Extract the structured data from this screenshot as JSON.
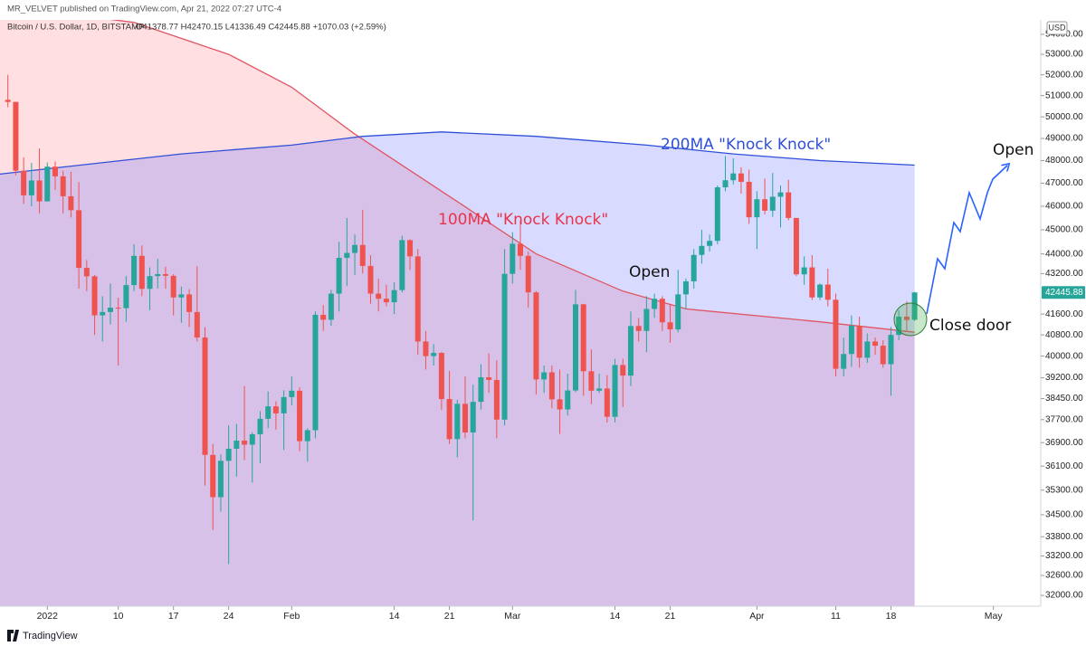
{
  "header": {
    "published": "MR_VELVET published on TradingView.com, Apr 21, 2022 07:27 UTC-4",
    "symbol": "Bitcoin / U.S. Dollar, 1D, BITSTAMP",
    "ohlc": "O41378.77  H42470.15  L41336.49  C42445.88  +1070.03 (+2.59%)",
    "currency": "USD"
  },
  "footer": {
    "brand": "TradingView"
  },
  "annotations": [
    {
      "text": "200MA  \"Knock Knock\"",
      "color": "#2f4fd8"
    },
    {
      "text": "100MA  \"Knock Knock\"",
      "color": "#e8344a"
    },
    {
      "text": "Open",
      "color": "#111111"
    },
    {
      "text": "Open",
      "color": "#111111"
    },
    {
      "text": "Close door",
      "color": "#111111"
    }
  ],
  "chart_data": {
    "type": "candlestick",
    "log": true,
    "grid": false,
    "up_color": "#26a69a",
    "down_color": "#ef5350",
    "xlim": [
      "2021-12-26",
      "2022-05-07"
    ],
    "ylim": [
      31680,
      54730
    ],
    "last_price": 42445.88,
    "xticks": [
      {
        "value": "2022-01-01",
        "label": "2022"
      },
      {
        "value": "2022-01-10",
        "label": "10"
      },
      {
        "value": "2022-01-17",
        "label": "17"
      },
      {
        "value": "2022-01-24",
        "label": "24"
      },
      {
        "value": "2022-02-01",
        "label": "Feb"
      },
      {
        "value": "2022-02-14",
        "label": "14"
      },
      {
        "value": "2022-02-21",
        "label": "21"
      },
      {
        "value": "2022-03-01",
        "label": "Mar"
      },
      {
        "value": "2022-03-14",
        "label": "14"
      },
      {
        "value": "2022-03-21",
        "label": "21"
      },
      {
        "value": "2022-04-01",
        "label": "Apr"
      },
      {
        "value": "2022-04-11",
        "label": "11"
      },
      {
        "value": "2022-04-18",
        "label": "18"
      },
      {
        "value": "2022-05-01",
        "label": "May"
      }
    ],
    "yticks": [
      {
        "value": 54000,
        "label": "54000.00"
      },
      {
        "value": 53000,
        "label": "53000.00"
      },
      {
        "value": 52000,
        "label": "52000.00"
      },
      {
        "value": 51000,
        "label": "51000.00"
      },
      {
        "value": 50000,
        "label": "50000.00"
      },
      {
        "value": 49000,
        "label": "49000.00"
      },
      {
        "value": 48000,
        "label": "48000.00"
      },
      {
        "value": 47000,
        "label": "47000.00"
      },
      {
        "value": 46000,
        "label": "46000.00"
      },
      {
        "value": 45000,
        "label": "45000.00"
      },
      {
        "value": 44000,
        "label": "44000.00"
      },
      {
        "value": 43200,
        "label": "43200.00"
      },
      {
        "value": 41600,
        "label": "41600.00"
      },
      {
        "value": 40800,
        "label": "40800.00"
      },
      {
        "value": 40000,
        "label": "40000.00"
      },
      {
        "value": 39200,
        "label": "39200.00"
      },
      {
        "value": 38450,
        "label": "38450.00"
      },
      {
        "value": 37700,
        "label": "37700.00"
      },
      {
        "value": 36900,
        "label": "36900.00"
      },
      {
        "value": 36100,
        "label": "36100.00"
      },
      {
        "value": 35300,
        "label": "35300.00"
      },
      {
        "value": 34500,
        "label": "34500.00"
      },
      {
        "value": 33800,
        "label": "33800.00"
      },
      {
        "value": 33200,
        "label": "33200.00"
      },
      {
        "value": 32600,
        "label": "32600.00"
      },
      {
        "value": 32000,
        "label": "32000.00"
      }
    ],
    "overlays": [
      {
        "color": "#e05563",
        "fill": "rgba(255,110,120,0.22)",
        "x": [
          "2021-12-26",
          "2022-01-12",
          "2022-01-24",
          "2022-02-01",
          "2022-02-09",
          "2022-02-22",
          "2022-03-04",
          "2022-03-15",
          "2022-03-23",
          "2022-04-09",
          "2022-04-21"
        ],
        "values": [
          55500,
          54600,
          53000,
          51400,
          49200,
          46200,
          44000,
          42500,
          41800,
          41300,
          40900
        ]
      },
      {
        "color": "#2f4fd8",
        "fill": "rgba(90,100,255,0.24)",
        "x": [
          "2021-12-26",
          "2022-01-18",
          "2022-02-01",
          "2022-02-10",
          "2022-02-20",
          "2022-03-04",
          "2022-03-18",
          "2022-03-29",
          "2022-04-09",
          "2022-04-21"
        ],
        "values": [
          47400,
          48300,
          48700,
          49100,
          49300,
          49100,
          48700,
          48300,
          48000,
          47800
        ]
      }
    ],
    "x": [
      "2021-12-27",
      "2021-12-28",
      "2021-12-29",
      "2021-12-30",
      "2021-12-31",
      "2022-01-01",
      "2022-01-02",
      "2022-01-03",
      "2022-01-04",
      "2022-01-05",
      "2022-01-06",
      "2022-01-07",
      "2022-01-08",
      "2022-01-09",
      "2022-01-10",
      "2022-01-11",
      "2022-01-12",
      "2022-01-13",
      "2022-01-14",
      "2022-01-15",
      "2022-01-16",
      "2022-01-17",
      "2022-01-18",
      "2022-01-19",
      "2022-01-20",
      "2022-01-21",
      "2022-01-22",
      "2022-01-23",
      "2022-01-24",
      "2022-01-25",
      "2022-01-26",
      "2022-01-27",
      "2022-01-28",
      "2022-01-29",
      "2022-01-30",
      "2022-01-31",
      "2022-02-01",
      "2022-02-02",
      "2022-02-03",
      "2022-02-04",
      "2022-02-05",
      "2022-02-06",
      "2022-02-07",
      "2022-02-08",
      "2022-02-09",
      "2022-02-10",
      "2022-02-11",
      "2022-02-12",
      "2022-02-13",
      "2022-02-14",
      "2022-02-15",
      "2022-02-16",
      "2022-02-17",
      "2022-02-18",
      "2022-02-19",
      "2022-02-20",
      "2022-02-21",
      "2022-02-22",
      "2022-02-23",
      "2022-02-24",
      "2022-02-25",
      "2022-02-26",
      "2022-02-27",
      "2022-02-28",
      "2022-03-01",
      "2022-03-02",
      "2022-03-03",
      "2022-03-04",
      "2022-03-05",
      "2022-03-06",
      "2022-03-07",
      "2022-03-08",
      "2022-03-09",
      "2022-03-10",
      "2022-03-11",
      "2022-03-12",
      "2022-03-13",
      "2022-03-14",
      "2022-03-15",
      "2022-03-16",
      "2022-03-17",
      "2022-03-18",
      "2022-03-19",
      "2022-03-20",
      "2022-03-21",
      "2022-03-22",
      "2022-03-23",
      "2022-03-24",
      "2022-03-25",
      "2022-03-26",
      "2022-03-27",
      "2022-03-28",
      "2022-03-29",
      "2022-03-30",
      "2022-03-31",
      "2022-04-01",
      "2022-04-02",
      "2022-04-03",
      "2022-04-04",
      "2022-04-05",
      "2022-04-06",
      "2022-04-07",
      "2022-04-08",
      "2022-04-09",
      "2022-04-10",
      "2022-04-11",
      "2022-04-12",
      "2022-04-13",
      "2022-04-14",
      "2022-04-15",
      "2022-04-16",
      "2022-04-17",
      "2022-04-18",
      "2022-04-19",
      "2022-04-20",
      "2022-04-21"
    ],
    "open": [
      50800,
      50700,
      47550,
      46470,
      47120,
      46210,
      47730,
      47300,
      46430,
      45830,
      43430,
      43090,
      41550,
      41680,
      41850,
      41830,
      42740,
      43920,
      42590,
      43100,
      43180,
      43110,
      42250,
      42370,
      41680,
      40700,
      36480,
      35070,
      36280,
      36690,
      36970,
      36830,
      37190,
      37730,
      38170,
      37920,
      38500,
      38730,
      36950,
      37330,
      41570,
      41380,
      42400,
      43840,
      44040,
      44370,
      43510,
      42400,
      42200,
      42060,
      42540,
      44570,
      43900,
      40550,
      40000,
      40120,
      38430,
      37020,
      38260,
      37250,
      38330,
      39220,
      39120,
      37700,
      43190,
      44420,
      43920,
      42450,
      39140,
      39400,
      38420,
      38060,
      38740,
      41980,
      39440,
      38730,
      38810,
      37800,
      39670,
      39280,
      41140,
      40950,
      41800,
      42200,
      41280,
      41010,
      42370,
      42890,
      43960,
      44330,
      44540,
      46820,
      47130,
      47430,
      47060,
      45530,
      46300,
      45810,
      46410,
      46600,
      45500,
      43170,
      43450,
      42250,
      42760,
      42160,
      39530,
      40080,
      41150,
      39940,
      40550,
      40390,
      39700,
      40800,
      41500,
      41378.77
    ],
    "high": [
      52000,
      50700,
      48150,
      47900,
      48550,
      47920,
      47960,
      47550,
      47500,
      47050,
      43750,
      43140,
      42300,
      42800,
      42240,
      43100,
      44400,
      44350,
      43450,
      43800,
      43480,
      43180,
      42680,
      42580,
      43500,
      41100,
      36850,
      36500,
      37500,
      37550,
      38900,
      37250,
      38000,
      38700,
      38350,
      38750,
      39250,
      38850,
      37400,
      41700,
      41950,
      42550,
      44500,
      45500,
      44800,
      45850,
      43950,
      43000,
      42750,
      42850,
      44750,
      44600,
      44200,
      40950,
      40450,
      40150,
      39450,
      38400,
      39250,
      38950,
      39700,
      40100,
      39850,
      44200,
      44900,
      45400,
      44100,
      42500,
      39650,
      39650,
      39500,
      39350,
      42550,
      42000,
      40250,
      39350,
      39300,
      39900,
      39900,
      41700,
      41450,
      42300,
      42400,
      42300,
      42000,
      43350,
      43000,
      44200,
      45000,
      44800,
      46900,
      48200,
      48100,
      47700,
      47600,
      46650,
      47200,
      47450,
      46900,
      47150,
      45500,
      43900,
      43950,
      42800,
      43400,
      42400,
      40700,
      41550,
      41500,
      40850,
      40700,
      40600,
      41100,
      41750,
      42100,
      42470.15
    ],
    "low": [
      50450,
      47350,
      46100,
      46000,
      45700,
      46210,
      46700,
      45700,
      45520,
      42600,
      42500,
      40800,
      40550,
      41200,
      39650,
      41300,
      42500,
      42300,
      41750,
      42600,
      42600,
      41550,
      41260,
      41100,
      40550,
      35450,
      34020,
      34600,
      32950,
      35750,
      36300,
      35550,
      36200,
      37400,
      37350,
      36650,
      38200,
      36600,
      36250,
      37050,
      40950,
      41150,
      41700,
      42700,
      43150,
      43200,
      42000,
      41700,
      41900,
      41600,
      42450,
      43350,
      40050,
      39500,
      39650,
      38050,
      36850,
      36400,
      37050,
      34320,
      38050,
      38650,
      37050,
      37500,
      42800,
      43350,
      41850,
      38600,
      38650,
      38100,
      37200,
      37850,
      38680,
      38550,
      38250,
      38650,
      37600,
      37600,
      38150,
      38900,
      40550,
      40150,
      41450,
      40950,
      40500,
      40900,
      41800,
      42600,
      43600,
      44100,
      44400,
      46650,
      46950,
      46550,
      45250,
      44200,
      45650,
      45550,
      45100,
      45400,
      43100,
      42750,
      42150,
      42150,
      41900,
      39250,
      39250,
      39600,
      39570,
      39750,
      40050,
      39570,
      38550,
      40600,
      40950,
      41336.49
    ],
    "close": [
      50700,
      47550,
      46470,
      47120,
      46210,
      47730,
      47300,
      46430,
      45830,
      43430,
      43090,
      41550,
      41680,
      41850,
      41830,
      42740,
      43920,
      42590,
      43100,
      43180,
      43110,
      42250,
      42370,
      41680,
      40700,
      36480,
      35070,
      36280,
      36690,
      36970,
      36830,
      37190,
      37730,
      38170,
      37920,
      38500,
      38730,
      36950,
      37330,
      41570,
      41380,
      42400,
      43840,
      44040,
      44370,
      43510,
      42400,
      42200,
      42060,
      42540,
      44570,
      43900,
      40550,
      40000,
      40120,
      38430,
      37020,
      38260,
      37250,
      38330,
      39220,
      39120,
      37700,
      43190,
      44420,
      43920,
      42450,
      39140,
      39400,
      38420,
      38060,
      38740,
      41980,
      39440,
      38730,
      38810,
      37800,
      39670,
      39280,
      41140,
      40950,
      41800,
      42200,
      41280,
      41010,
      42370,
      42890,
      43960,
      44330,
      44540,
      46820,
      47130,
      47430,
      47060,
      45530,
      46300,
      45810,
      46410,
      46600,
      45500,
      43170,
      43450,
      42250,
      42760,
      42160,
      39530,
      40080,
      41150,
      39940,
      40550,
      40390,
      39700,
      40800,
      41500,
      41370,
      42445.88
    ]
  }
}
